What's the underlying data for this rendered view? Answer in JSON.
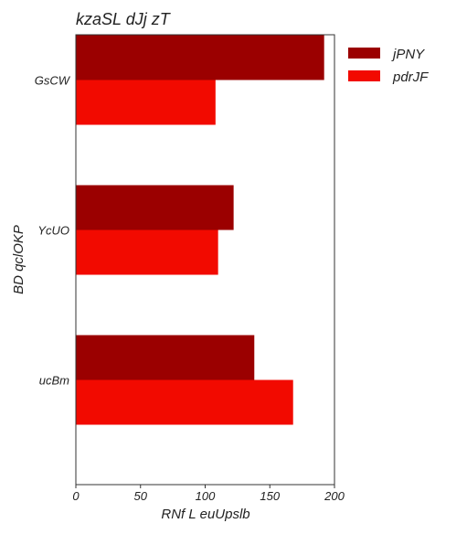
{
  "chart_data": {
    "type": "bar",
    "orientation": "horizontal",
    "title": "kzaSL dJj zT",
    "xlabel": "RNf L euUpslb",
    "ylabel": "BD qclOKP",
    "categories": [
      "GsCW",
      "YcUO",
      "ucBm"
    ],
    "series": [
      {
        "name": "jPNY",
        "color": "#9b0000",
        "values": [
          192,
          122,
          138
        ]
      },
      {
        "name": "pdrJF",
        "color": "#f20a00",
        "values": [
          108,
          110,
          168
        ]
      }
    ],
    "xlim": [
      0,
      200
    ],
    "xticks": [
      0,
      50,
      100,
      150,
      200
    ],
    "grid": false,
    "legend": "outside-top-right"
  }
}
